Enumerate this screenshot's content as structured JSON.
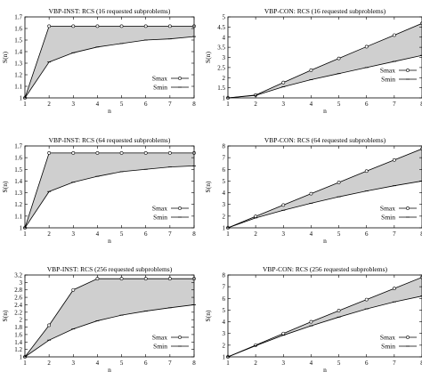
{
  "chart_data": [
    {
      "type": "area",
      "title": "VBP-INST: RCS  (16 requested subproblems)",
      "xlabel": "n",
      "ylabel": "S(n)",
      "x": [
        1,
        2,
        3,
        4,
        5,
        6,
        7,
        8
      ],
      "xlim": [
        1,
        8
      ],
      "ylim": [
        1,
        1.7
      ],
      "yticks": [
        1,
        1.1,
        1.2,
        1.3,
        1.4,
        1.5,
        1.6,
        1.7
      ],
      "ytick_labels": [
        "1",
        "1.1",
        "1.2",
        "1.3",
        "1.4",
        "1.5",
        "1.6",
        "1.7"
      ],
      "legend": "bottom-right",
      "series": [
        {
          "name": "Smax",
          "values": [
            1,
            1.62,
            1.62,
            1.62,
            1.62,
            1.62,
            1.62,
            1.62
          ]
        },
        {
          "name": "Smin",
          "values": [
            1,
            1.31,
            1.39,
            1.44,
            1.47,
            1.5,
            1.51,
            1.53
          ]
        }
      ]
    },
    {
      "type": "area",
      "title": "VBP-CON: RCS  (16 requested subproblems)",
      "xlabel": "n",
      "ylabel": "S(n)",
      "x": [
        1,
        2,
        3,
        4,
        5,
        6,
        7,
        8
      ],
      "xlim": [
        1,
        8
      ],
      "ylim": [
        1,
        5
      ],
      "yticks": [
        1,
        1.5,
        2,
        2.5,
        3,
        3.5,
        4,
        4.5,
        5
      ],
      "ytick_labels": [
        "1",
        "1.5",
        "2",
        "2.5",
        "3",
        "3.5",
        "4",
        "4.5",
        "5"
      ],
      "legend": "right",
      "series": [
        {
          "name": "Smax",
          "values": [
            1,
            1.14,
            1.76,
            2.37,
            2.95,
            3.53,
            4.1,
            4.68
          ]
        },
        {
          "name": "Smin",
          "values": [
            1,
            1.12,
            1.55,
            1.9,
            2.2,
            2.5,
            2.8,
            3.1
          ]
        }
      ]
    },
    {
      "type": "area",
      "title": "VBP-INST: RCS  (64 requested subproblems)",
      "xlabel": "n",
      "ylabel": "S(n)",
      "x": [
        1,
        2,
        3,
        4,
        5,
        6,
        7,
        8
      ],
      "xlim": [
        1,
        8
      ],
      "ylim": [
        1,
        1.7
      ],
      "yticks": [
        1,
        1.1,
        1.2,
        1.3,
        1.4,
        1.5,
        1.6,
        1.7
      ],
      "ytick_labels": [
        "1",
        "1.1",
        "1.2",
        "1.3",
        "1.4",
        "1.5",
        "1.6",
        "1.7"
      ],
      "legend": "bottom-right",
      "series": [
        {
          "name": "Smax",
          "values": [
            1,
            1.64,
            1.64,
            1.64,
            1.64,
            1.64,
            1.64,
            1.64
          ]
        },
        {
          "name": "Smin",
          "values": [
            1,
            1.31,
            1.39,
            1.44,
            1.48,
            1.5,
            1.52,
            1.53
          ]
        }
      ]
    },
    {
      "type": "area",
      "title": "VBP-CON: RCS  (64 requested subproblems)",
      "xlabel": "n",
      "ylabel": "S(n)",
      "x": [
        1,
        2,
        3,
        4,
        5,
        6,
        7,
        8
      ],
      "xlim": [
        1,
        8
      ],
      "ylim": [
        1,
        8
      ],
      "yticks": [
        1,
        2,
        3,
        4,
        5,
        6,
        7,
        8
      ],
      "ytick_labels": [
        "1",
        "2",
        "3",
        "4",
        "5",
        "6",
        "7",
        "8"
      ],
      "legend": "bottom-right",
      "series": [
        {
          "name": "Smax",
          "values": [
            1,
            1.98,
            2.95,
            3.92,
            4.88,
            5.85,
            6.8,
            7.75
          ]
        },
        {
          "name": "Smin",
          "values": [
            1,
            1.85,
            2.5,
            3.1,
            3.65,
            4.15,
            4.6,
            5.0
          ]
        }
      ]
    },
    {
      "type": "area",
      "title": "VBP-INST: RCS  (256 requested subproblems)",
      "xlabel": "n",
      "ylabel": "S(n)",
      "x": [
        1,
        2,
        3,
        4,
        5,
        6,
        7,
        8
      ],
      "xlim": [
        1,
        8
      ],
      "ylim": [
        1,
        3.2
      ],
      "yticks": [
        1,
        1.2,
        1.4,
        1.6,
        1.8,
        2,
        2.2,
        2.4,
        2.6,
        2.8,
        3,
        3.2
      ],
      "ytick_labels": [
        "1",
        "1.2",
        "1.4",
        "1.6",
        "1.8",
        "2",
        "2.2",
        "2.4",
        "2.6",
        "2.8",
        "3",
        "3.2"
      ],
      "legend": "bottom-right",
      "series": [
        {
          "name": "Smax",
          "values": [
            1,
            1.85,
            2.8,
            3.1,
            3.1,
            3.1,
            3.1,
            3.1
          ]
        },
        {
          "name": "Smin",
          "values": [
            1,
            1.45,
            1.75,
            1.97,
            2.12,
            2.23,
            2.32,
            2.4
          ]
        }
      ]
    },
    {
      "type": "area",
      "title": "VBP-CON: RCS  (256 requested subproblems)",
      "xlabel": "n",
      "ylabel": "S(n)",
      "x": [
        1,
        2,
        3,
        4,
        5,
        6,
        7,
        8
      ],
      "xlim": [
        1,
        8
      ],
      "ylim": [
        1,
        8
      ],
      "yticks": [
        1,
        2,
        3,
        4,
        5,
        6,
        7,
        8
      ],
      "ytick_labels": [
        "1",
        "2",
        "3",
        "4",
        "5",
        "6",
        "7",
        "8"
      ],
      "legend": "bottom-right",
      "series": [
        {
          "name": "Smax",
          "values": [
            1,
            2.0,
            3.0,
            4.0,
            4.95,
            5.9,
            6.85,
            7.8
          ]
        },
        {
          "name": "Smin",
          "values": [
            1,
            1.95,
            2.85,
            3.65,
            4.4,
            5.1,
            5.7,
            6.2
          ]
        }
      ]
    }
  ]
}
